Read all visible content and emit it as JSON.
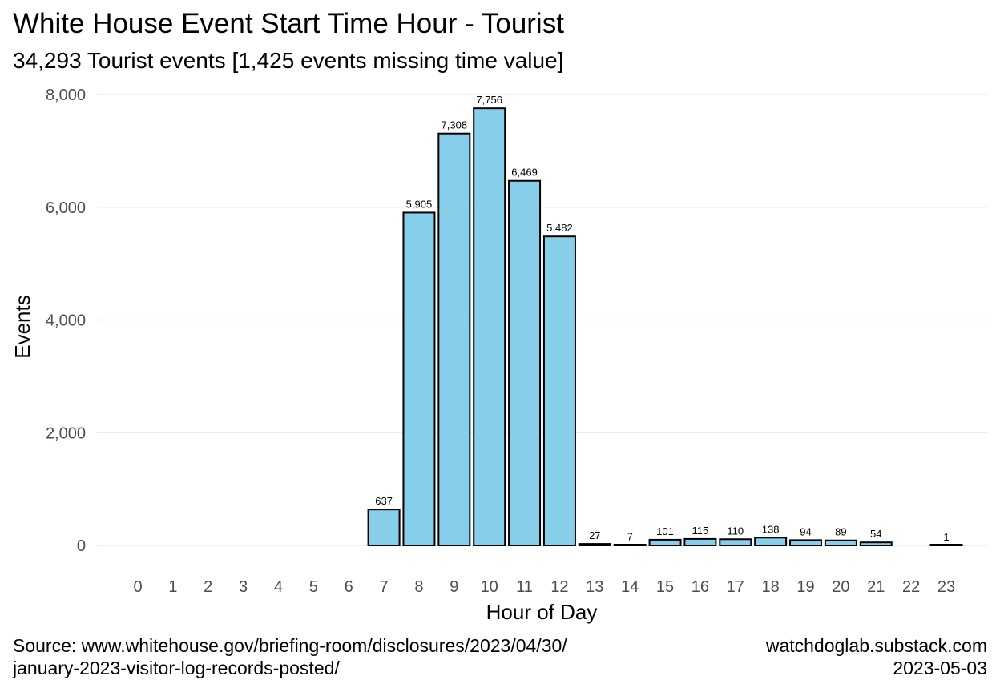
{
  "chart_data": {
    "type": "bar",
    "title": "White House Event Start Time Hour - Tourist",
    "subtitle": "34,293 Tourist events [1,425 events missing time value]",
    "xlabel": "Hour of Day",
    "ylabel": "Events",
    "categories": [
      "0",
      "1",
      "2",
      "3",
      "4",
      "5",
      "6",
      "7",
      "8",
      "9",
      "10",
      "11",
      "12",
      "13",
      "14",
      "15",
      "16",
      "17",
      "18",
      "19",
      "20",
      "21",
      "22",
      "23"
    ],
    "values": [
      0,
      0,
      0,
      0,
      0,
      0,
      0,
      637,
      5905,
      7308,
      7756,
      6469,
      5482,
      27,
      7,
      101,
      115,
      110,
      138,
      94,
      89,
      54,
      0,
      1
    ],
    "data_labels": [
      "",
      "",
      "",
      "",
      "",
      "",
      "",
      "637",
      "5,905",
      "7,308",
      "7,756",
      "6,469",
      "5,482",
      "27",
      "7",
      "101",
      "115",
      "110",
      "138",
      "94",
      "89",
      "54",
      "",
      "1"
    ],
    "ylim": [
      0,
      8000
    ],
    "yticks": [
      0,
      2000,
      4000,
      6000,
      8000
    ],
    "ytick_labels": [
      "0",
      "2,000",
      "4,000",
      "6,000",
      "8,000"
    ],
    "grid": "horizontal",
    "bar_fill": "#87ceeb",
    "bar_stroke": "#000000"
  },
  "caption": {
    "source_line1": "Source: www.whitehouse.gov/briefing-room/disclosures/2023/04/30/",
    "source_line2": "january-2023-visitor-log-records-posted/",
    "site": "watchdoglab.substack.com",
    "date": "2023-05-03"
  }
}
